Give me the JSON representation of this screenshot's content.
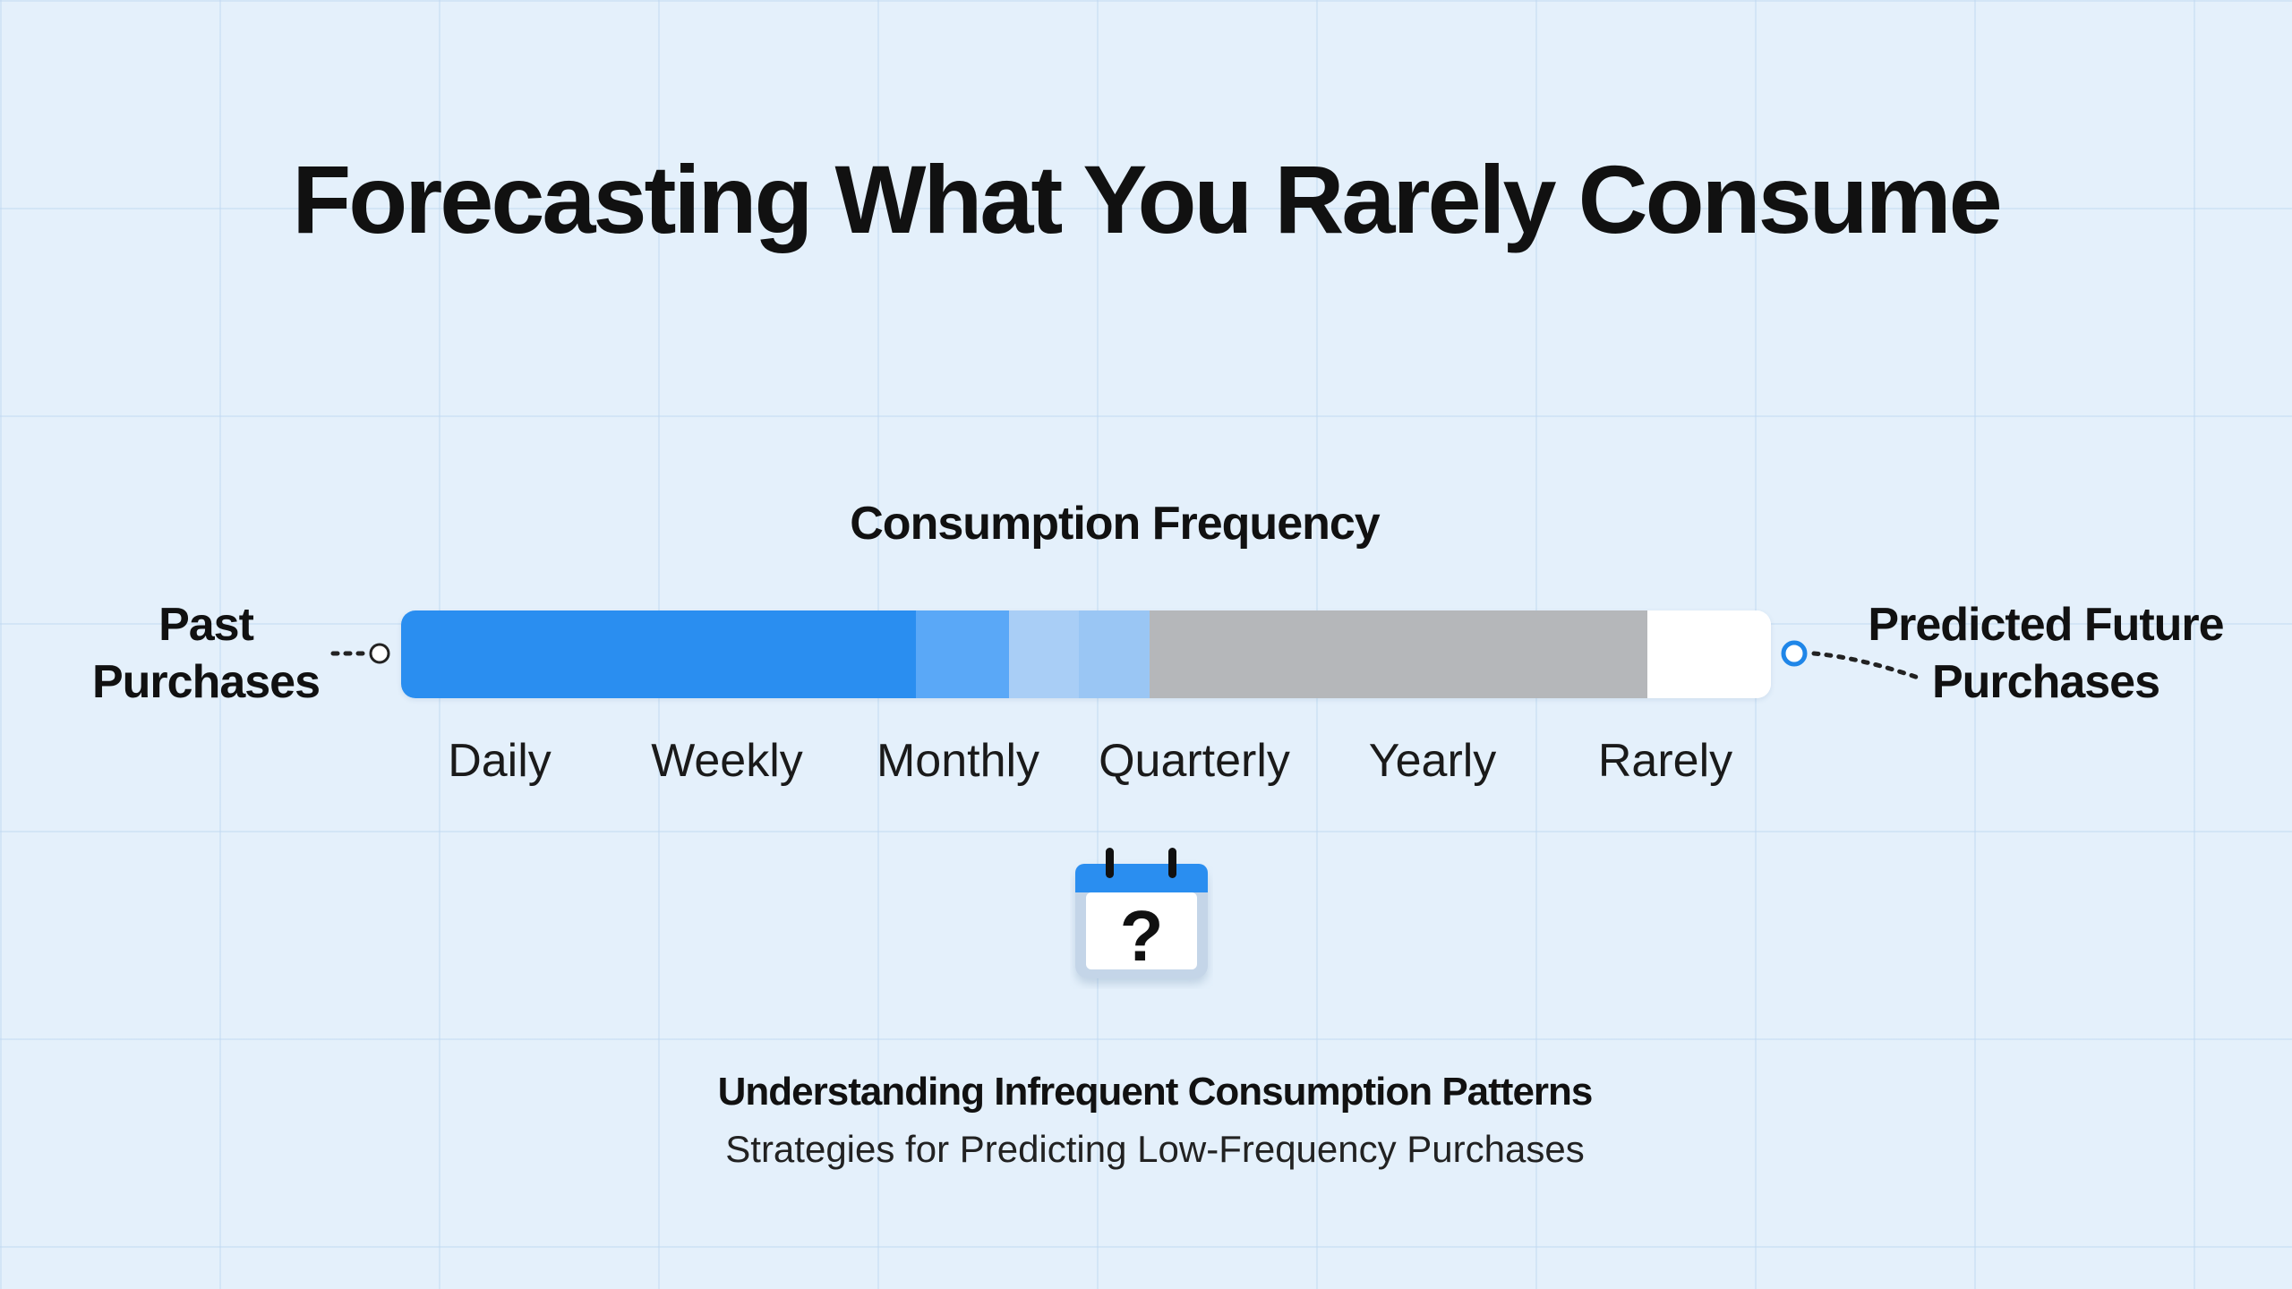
{
  "title": "Forecasting What You Rarely Consume",
  "bar": {
    "heading": "Consumption Frequency",
    "past_label_lines": [
      "Past",
      "Purchases"
    ],
    "future_label_lines": [
      "Predicted Future",
      "Purchases"
    ],
    "segments": [
      {
        "label": "Daily",
        "color": "#2a8ef0"
      },
      {
        "label": "Weekly",
        "color": "#2a8ef0"
      },
      {
        "label": "Monthly",
        "color": "#5aa8f7"
      },
      {
        "label": "Quarterly",
        "color": "#9ac6f4"
      },
      {
        "label": "Yearly",
        "color": "#b5b7ba"
      },
      {
        "label": "Rarely",
        "color": "#ffffff"
      }
    ]
  },
  "icon": {
    "name": "calendar-question-icon",
    "glyph": "?",
    "accent": "#2a8ef0"
  },
  "footer": {
    "heading": "Understanding Infrequent Consumption Patterns",
    "subheading": "Strategies for Predicting Low-Frequency Purchases"
  }
}
